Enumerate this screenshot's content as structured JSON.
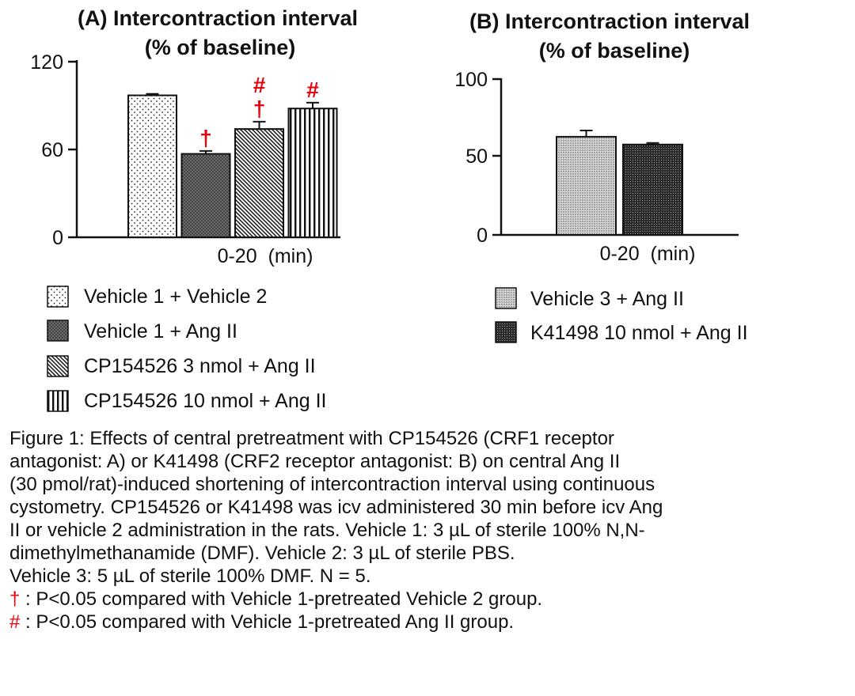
{
  "panels": [
    {
      "title_line1": "(A) Intercontraction interval",
      "title_line2": "(% of baseline)",
      "x_label": "0-20  (min)",
      "y_ticks": [
        "0",
        "60",
        "120"
      ],
      "legend": [
        "Vehicle 1 + Vehicle 2",
        "Vehicle 1 + Ang II",
        "CP154526 3 nmol + Ang II",
        "CP154526 10 nmol + Ang II"
      ]
    },
    {
      "title_line1": "(B) Intercontraction interval",
      "title_line2": "(% of baseline)",
      "x_label": "0-20  (min)",
      "y_ticks": [
        "0",
        "50",
        "100"
      ],
      "legend": [
        "Vehicle 3 + Ang II",
        "K41498 10 nmol + Ang II"
      ]
    }
  ],
  "chart_data": [
    {
      "type": "bar",
      "title": "(A) Intercontraction interval (% of baseline)",
      "xlabel": "0-20  (min)",
      "ylim": [
        0,
        120
      ],
      "categories": [
        "Vehicle 1 + Vehicle 2",
        "Vehicle 1 + Ang II",
        "CP154526 3 nmol + Ang II",
        "CP154526 10 nmol + Ang II"
      ],
      "values": [
        97,
        57,
        74,
        88
      ],
      "errors": [
        1,
        2,
        5,
        4
      ],
      "patterns": [
        "dots",
        "dense-dots",
        "diagonal",
        "vertical"
      ],
      "markers": [
        [],
        [
          "†"
        ],
        [
          "#",
          "†"
        ],
        [
          "#"
        ]
      ],
      "legend_position": "bottom"
    },
    {
      "type": "bar",
      "title": "(B) Intercontraction interval (% of baseline)",
      "xlabel": "0-20  (min)",
      "ylim": [
        0,
        100
      ],
      "categories": [
        "Vehicle 3 + Ang II",
        "K41498 10 nmol + Ang II"
      ],
      "values": [
        63,
        58
      ],
      "errors": [
        4,
        1
      ],
      "patterns": [
        "fine-dots",
        "dark-dots"
      ],
      "markers": [
        [],
        []
      ],
      "legend_position": "bottom"
    }
  ],
  "caption": {
    "lines": [
      "Figure 1: Effects of central pretreatment with CP154526 (CRF1 receptor",
      "antagonist: A) or K41498 (CRF2 receptor antagonist: B) on central Ang II",
      "(30 pmol/rat)-induced shortening of intercontraction interval using continuous",
      "cystometry. CP154526 or K41498 was icv administered 30 min before icv Ang",
      "II or vehicle 2 administration in the rats. Vehicle 1: 3 µL of sterile 100% N,N-",
      "dimethylmethanamide (DMF). Vehicle 2: 3 µL of sterile PBS.",
      "Vehicle 3: 5 µL of sterile 100% DMF. N = 5."
    ],
    "note_dagger_symbol": "†",
    "note_dagger_text": " : P<0.05 compared with Vehicle 1-pretreated Vehicle 2 group.",
    "note_hash_symbol": "#",
    "note_hash_text": " : P<0.05 compared with Vehicle 1-pretreated Ang II group."
  },
  "colors": {
    "marker_red": "#e8000b",
    "ink": "#111111"
  }
}
